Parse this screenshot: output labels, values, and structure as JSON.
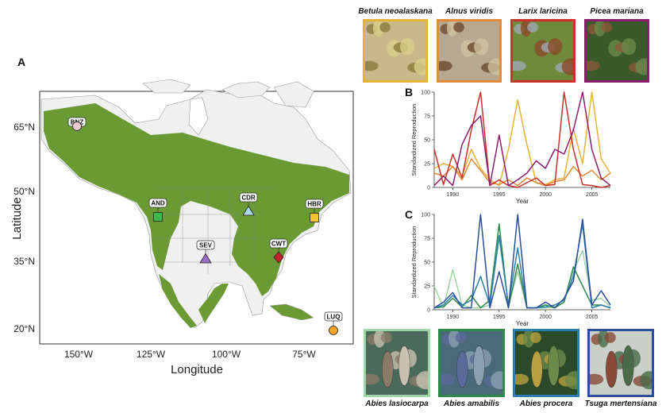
{
  "panel_a": {
    "label": "A",
    "xlabel": "Longitude",
    "ylabel": "Latitude",
    "x_ticks": [
      "150°W",
      "125°W",
      "100°W",
      "75°W"
    ],
    "y_ticks": [
      "65°N",
      "50°N",
      "35°N",
      "20°N"
    ],
    "land_color": "#f0f0f0",
    "forest_color": "#6b9a34",
    "sites": [
      {
        "code": "BNZ",
        "shape": "circle",
        "color": "#f5c9d1"
      },
      {
        "code": "AND",
        "shape": "square",
        "color": "#3cb94a"
      },
      {
        "code": "CDR",
        "shape": "triangle",
        "color": "#a9d8f0"
      },
      {
        "code": "HBR",
        "shape": "square",
        "color": "#f4c430"
      },
      {
        "code": "SEV",
        "shape": "triangle",
        "color": "#9b6fc6"
      },
      {
        "code": "CWT",
        "shape": "diamond",
        "color": "#c8202a"
      },
      {
        "code": "LUQ",
        "shape": "circle",
        "color": "#f4a52a"
      }
    ]
  },
  "top_species": [
    {
      "name": "Betula neoalaskana",
      "border": "#e8b23a"
    },
    {
      "name": "Alnus viridis",
      "border": "#e08a3a"
    },
    {
      "name": "Larix laricina",
      "border": "#c8302a"
    },
    {
      "name": "Picea mariana",
      "border": "#8a1e6e"
    }
  ],
  "bottom_species": [
    {
      "name": "Abies lasiocarpa",
      "border": "#9fd3a8"
    },
    {
      "name": "Abies amabilis",
      "border": "#2f8a4a"
    },
    {
      "name": "Abies procera",
      "border": "#2a7fae"
    },
    {
      "name": "Tsuga mertensiana",
      "border": "#2b4f9a"
    }
  ],
  "chart_data": [
    {
      "panel": "B",
      "type": "line",
      "xlabel": "Year",
      "ylabel": "Standardized Reproduction",
      "xlim": [
        1988,
        2007
      ],
      "ylim": [
        0,
        100
      ],
      "x_ticks": [
        1990,
        1995,
        2000,
        2005
      ],
      "y_ticks": [
        0,
        25,
        50,
        75,
        100
      ],
      "x": [
        1988,
        1989,
        1990,
        1991,
        1992,
        1993,
        1994,
        1995,
        1996,
        1997,
        1998,
        1999,
        2000,
        2001,
        2002,
        2003,
        2004,
        2005,
        2006,
        2007
      ],
      "series": [
        {
          "color": "#e8b23a",
          "values": [
            20,
            25,
            22,
            12,
            40,
            20,
            8,
            2,
            40,
            92,
            45,
            5,
            3,
            8,
            10,
            62,
            25,
            100,
            30,
            15
          ]
        },
        {
          "color": "#e08a3a",
          "values": [
            15,
            12,
            22,
            8,
            30,
            18,
            5,
            3,
            8,
            2,
            10,
            5,
            2,
            6,
            8,
            22,
            12,
            18,
            8,
            15
          ]
        },
        {
          "color": "#c8302a",
          "values": [
            40,
            3,
            35,
            10,
            60,
            100,
            2,
            8,
            2,
            0,
            5,
            10,
            2,
            3,
            100,
            40,
            3,
            2,
            0,
            2
          ]
        },
        {
          "color": "#8a1e6e",
          "values": [
            2,
            12,
            2,
            45,
            65,
            75,
            2,
            55,
            2,
            8,
            15,
            28,
            20,
            40,
            35,
            60,
            100,
            40,
            10,
            2
          ]
        }
      ]
    },
    {
      "panel": "C",
      "type": "line",
      "xlabel": "Year",
      "ylabel": "Standardized Reproduction",
      "xlim": [
        1988,
        2007
      ],
      "ylim": [
        0,
        100
      ],
      "x_ticks": [
        1990,
        1995,
        2000,
        2005
      ],
      "y_ticks": [
        0,
        25,
        50,
        75,
        100
      ],
      "x": [
        1988,
        1989,
        1990,
        1991,
        1992,
        1993,
        1994,
        1995,
        1996,
        1997,
        1998,
        1999,
        2000,
        2001,
        2002,
        2003,
        2004,
        2005,
        2006,
        2007
      ],
      "series": [
        {
          "color": "#9fd3a8",
          "values": [
            25,
            2,
            42,
            5,
            2,
            2,
            5,
            75,
            5,
            40,
            2,
            2,
            2,
            3,
            8,
            40,
            62,
            10,
            12,
            3
          ]
        },
        {
          "color": "#2f8a4a",
          "values": [
            2,
            3,
            12,
            3,
            15,
            2,
            10,
            90,
            2,
            48,
            2,
            2,
            5,
            2,
            8,
            45,
            25,
            5,
            5,
            2
          ]
        },
        {
          "color": "#2a7fae",
          "values": [
            2,
            5,
            15,
            5,
            10,
            35,
            5,
            78,
            5,
            65,
            2,
            2,
            3,
            5,
            10,
            35,
            90,
            2,
            5,
            2
          ]
        },
        {
          "color": "#2b4f9a",
          "values": [
            2,
            8,
            18,
            2,
            2,
            100,
            2,
            40,
            2,
            100,
            2,
            2,
            8,
            2,
            12,
            30,
            95,
            5,
            20,
            5
          ]
        }
      ]
    }
  ]
}
